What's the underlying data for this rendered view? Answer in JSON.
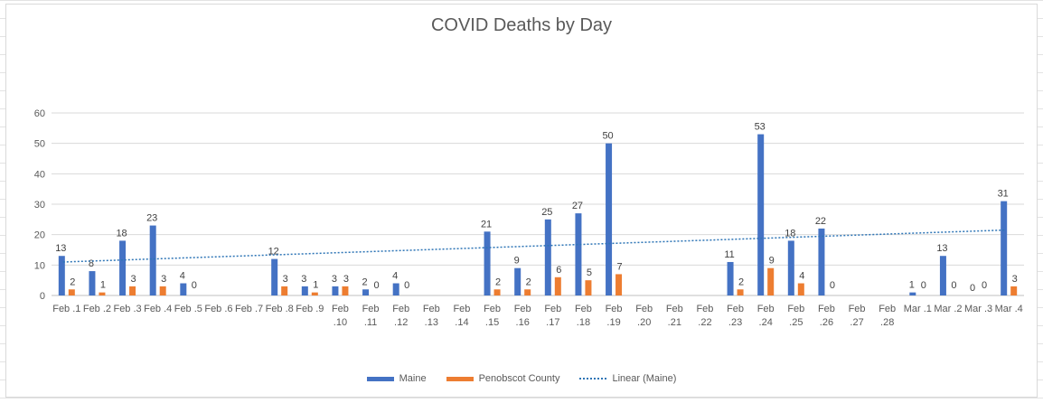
{
  "chart_data": {
    "type": "bar",
    "title": "COVID Deaths by Day",
    "xlabel": "",
    "ylabel": "",
    "ylim": [
      0,
      60
    ],
    "yticks": [
      0,
      10,
      20,
      30,
      40,
      50,
      60
    ],
    "grid": true,
    "legend_position": "bottom",
    "categories": [
      "Feb .1",
      "Feb .2",
      "Feb .3",
      "Feb .4",
      "Feb .5",
      "Feb .6",
      "Feb .7",
      "Feb .8",
      "Feb .9",
      "Feb .10",
      "Feb .11",
      "Feb .12",
      "Feb .13",
      "Feb .14",
      "Feb .15",
      "Feb .16",
      "Feb .17",
      "Feb .18",
      "Feb .19",
      "Feb .20",
      "Feb .21",
      "Feb .22",
      "Feb .23",
      "Feb .24",
      "Feb .25",
      "Feb .26",
      "Feb .27",
      "Feb .28",
      "Mar .1",
      "Mar .2",
      "Mar .3",
      "Mar .4"
    ],
    "series": [
      {
        "name": "Maine",
        "color": "#4472c4",
        "values": [
          13,
          8,
          18,
          23,
          4,
          null,
          null,
          12,
          3,
          3,
          2,
          4,
          null,
          null,
          21,
          9,
          25,
          27,
          50,
          null,
          null,
          null,
          11,
          53,
          18,
          22,
          null,
          null,
          1,
          13,
          0,
          31
        ]
      },
      {
        "name": "Penobscot County",
        "color": "#ed7d31",
        "values": [
          2,
          1,
          3,
          3,
          0,
          null,
          null,
          3,
          1,
          3,
          0,
          0,
          null,
          null,
          2,
          2,
          6,
          5,
          7,
          null,
          null,
          null,
          2,
          9,
          4,
          0,
          null,
          null,
          0,
          0,
          0,
          3
        ]
      }
    ],
    "trendline": {
      "name": "Linear (Maine)",
      "color": "#2e75b6",
      "style": "dotted",
      "start_value": 11,
      "end_value": 21.5
    }
  }
}
